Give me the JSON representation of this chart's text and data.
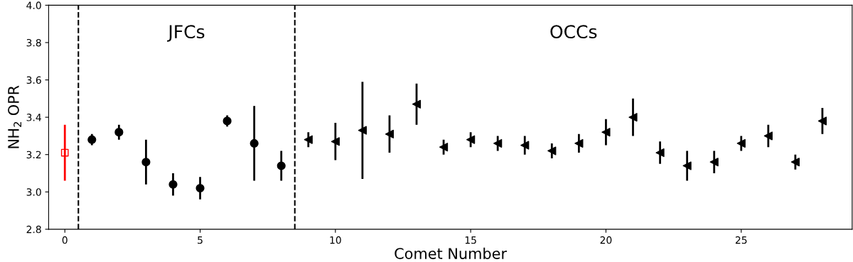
{
  "chart_data": {
    "type": "scatter",
    "xlabel": "Comet Number",
    "ylabel": "NH$_{2}$ OPR",
    "xlim": [
      -0.6,
      29.1
    ],
    "xticks": [
      0,
      5,
      10,
      15,
      20,
      25
    ],
    "ylim": [
      2.8,
      4.0
    ],
    "yticks": [
      {
        "value": 2.8,
        "label": "2.8"
      },
      {
        "value": 3.0,
        "label": "3.0"
      },
      {
        "value": 3.2,
        "label": "3.2"
      },
      {
        "value": 3.4,
        "label": "3.4"
      },
      {
        "value": 3.6,
        "label": "3.6"
      },
      {
        "value": 3.8,
        "label": "3.8"
      },
      {
        "value": 4.0,
        "label": "4.0"
      }
    ],
    "grid": false,
    "series": [
      {
        "color": "#ff0000",
        "marker": "square",
        "x": [
          0
        ],
        "values": [
          3.21
        ],
        "errors": [
          [
            3.06,
            3.36
          ]
        ]
      },
      {
        "color": "#000000",
        "marker": "circle",
        "x": [
          1,
          2,
          3,
          4,
          5,
          6,
          7,
          8
        ],
        "values": [
          3.28,
          3.32,
          3.16,
          3.04,
          3.02,
          3.38,
          3.26,
          3.14
        ],
        "errors": [
          [
            3.25,
            3.31
          ],
          [
            3.28,
            3.36
          ],
          [
            3.04,
            3.28
          ],
          [
            2.98,
            3.1
          ],
          [
            2.96,
            3.08
          ],
          [
            3.35,
            3.41
          ],
          [
            3.06,
            3.46
          ],
          [
            3.06,
            3.22
          ]
        ]
      },
      {
        "color": "#000000",
        "marker": "triangle",
        "x": [
          9,
          10,
          11,
          12,
          13,
          14,
          15,
          16,
          17,
          18,
          19,
          20,
          21,
          22,
          23,
          24,
          25,
          26,
          27,
          28
        ],
        "values": [
          3.28,
          3.27,
          3.33,
          3.31,
          3.47,
          3.24,
          3.28,
          3.26,
          3.25,
          3.22,
          3.26,
          3.32,
          3.4,
          3.21,
          3.14,
          3.16,
          3.26,
          3.3,
          3.16,
          3.38
        ],
        "errors": [
          [
            3.24,
            3.32
          ],
          [
            3.17,
            3.37
          ],
          [
            3.07,
            3.59
          ],
          [
            3.21,
            3.41
          ],
          [
            3.36,
            3.58
          ],
          [
            3.2,
            3.28
          ],
          [
            3.24,
            3.32
          ],
          [
            3.22,
            3.3
          ],
          [
            3.2,
            3.3
          ],
          [
            3.18,
            3.26
          ],
          [
            3.21,
            3.31
          ],
          [
            3.25,
            3.39
          ],
          [
            3.3,
            3.5
          ],
          [
            3.15,
            3.27
          ],
          [
            3.06,
            3.22
          ],
          [
            3.1,
            3.22
          ],
          [
            3.22,
            3.3
          ],
          [
            3.24,
            3.36
          ],
          [
            3.12,
            3.2
          ],
          [
            3.31,
            3.45
          ]
        ]
      }
    ],
    "ref_lines": [
      {
        "axis": "x",
        "value": 0.5,
        "color": "#000000",
        "line_style": "dashed"
      },
      {
        "axis": "x",
        "value": 8.5,
        "color": "#000000",
        "line_style": "dashed"
      }
    ],
    "annotations": [
      "JFCs",
      "OCCs"
    ]
  }
}
